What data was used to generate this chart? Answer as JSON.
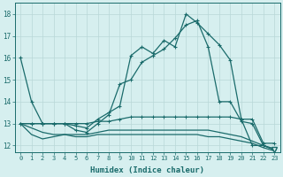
{
  "title": "",
  "xlabel": "Humidex (Indice chaleur)",
  "ylabel": "",
  "bg_color": "#d6efef",
  "grid_color": "#b8d8d8",
  "line_color": "#1a6b6b",
  "xlim": [
    -0.5,
    23.5
  ],
  "ylim": [
    11.7,
    18.5
  ],
  "xticks": [
    0,
    1,
    2,
    3,
    4,
    5,
    6,
    7,
    8,
    9,
    10,
    11,
    12,
    13,
    14,
    15,
    16,
    17,
    18,
    19,
    20,
    21,
    22,
    23
  ],
  "yticks": [
    12,
    13,
    14,
    15,
    16,
    17,
    18
  ],
  "series_main": [
    16.0,
    14.0,
    13.0,
    13.0,
    13.0,
    12.9,
    12.8,
    13.2,
    13.5,
    13.8,
    16.1,
    16.5,
    16.2,
    16.8,
    16.5,
    18.0,
    17.6,
    17.1,
    16.6,
    15.9,
    13.2,
    12.0,
    12.0,
    11.8
  ],
  "series_rise": [
    13.0,
    13.0,
    13.0,
    13.0,
    13.0,
    12.7,
    12.6,
    13.0,
    13.4,
    14.8,
    15.0,
    15.8,
    16.1,
    16.4,
    16.9,
    17.5,
    17.7,
    16.5,
    14.0,
    14.0,
    13.1,
    13.0,
    12.0,
    11.8
  ],
  "series_flat1": [
    13.0,
    13.0,
    13.0,
    13.0,
    13.0,
    13.0,
    13.0,
    13.1,
    13.1,
    13.2,
    13.3,
    13.3,
    13.3,
    13.3,
    13.3,
    13.3,
    13.3,
    13.3,
    13.3,
    13.3,
    13.2,
    13.2,
    12.1,
    12.1
  ],
  "series_flat2": [
    13.0,
    12.8,
    12.6,
    12.5,
    12.5,
    12.5,
    12.5,
    12.6,
    12.7,
    12.7,
    12.7,
    12.7,
    12.7,
    12.7,
    12.7,
    12.7,
    12.7,
    12.7,
    12.6,
    12.5,
    12.4,
    12.2,
    12.0,
    11.85
  ],
  "series_low": [
    13.0,
    12.5,
    12.3,
    12.4,
    12.5,
    12.4,
    12.4,
    12.5,
    12.5,
    12.5,
    12.5,
    12.5,
    12.5,
    12.5,
    12.5,
    12.5,
    12.5,
    12.4,
    12.4,
    12.3,
    12.2,
    12.1,
    11.9,
    11.75
  ],
  "triangle_x": 23,
  "triangle_y": 11.8
}
